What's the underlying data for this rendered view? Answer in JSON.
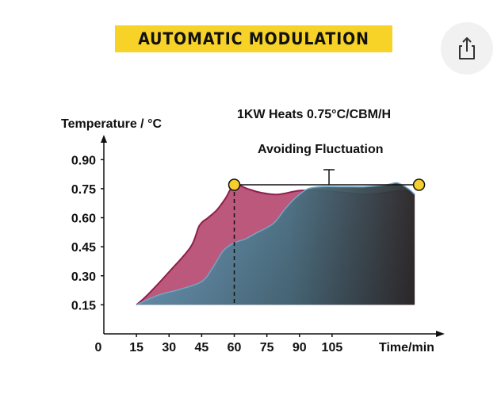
{
  "banner": {
    "title": "AUTOMATIC MODULATION"
  },
  "share": {
    "icon": "share-icon"
  },
  "chart_data": {
    "type": "area",
    "title": "",
    "subtitle": "1KW Heats 0.75°C/CBM/H",
    "annotation": "Avoiding Fluctuation",
    "xlabel": "Time/min",
    "ylabel": "Temperature / °C",
    "x_ticks": [
      0,
      15,
      30,
      45,
      60,
      75,
      90,
      105
    ],
    "y_ticks": [
      "0.15",
      "0.30",
      "0.45",
      "0.60",
      "0.75",
      "0.90"
    ],
    "xlim": [
      0,
      155
    ],
    "ylim": [
      0,
      1.02
    ],
    "target_level": 0.77,
    "marker_points": [
      [
        60,
        0.77
      ],
      [
        145,
        0.77
      ]
    ],
    "dashed_line_x": 60,
    "colors": {
      "series_a_fill": "#b5466e",
      "series_a_line": "#8e1f4e",
      "series_b_fill_start": "#6fa6c6",
      "series_b_fill_end": "#2b2b2b",
      "marker": "#f5cf2d"
    },
    "series": [
      {
        "x": [
          15,
          20,
          30,
          40,
          44,
          48,
          52,
          56,
          60,
          66,
          72,
          80,
          90,
          100,
          110,
          120,
          130,
          138,
          143
        ],
        "values": [
          0.15,
          0.2,
          0.32,
          0.45,
          0.56,
          0.6,
          0.64,
          0.7,
          0.77,
          0.75,
          0.73,
          0.72,
          0.74,
          0.74,
          0.73,
          0.72,
          0.73,
          0.74,
          0.72
        ]
      },
      {
        "x": [
          15,
          25,
          35,
          45,
          50,
          55,
          60,
          65,
          70,
          78,
          83,
          87,
          90,
          94,
          100,
          110,
          120,
          130,
          135,
          140,
          143
        ],
        "values": [
          0.15,
          0.2,
          0.23,
          0.27,
          0.34,
          0.43,
          0.47,
          0.49,
          0.52,
          0.57,
          0.64,
          0.69,
          0.72,
          0.75,
          0.76,
          0.76,
          0.76,
          0.77,
          0.78,
          0.75,
          0.72
        ]
      }
    ]
  }
}
